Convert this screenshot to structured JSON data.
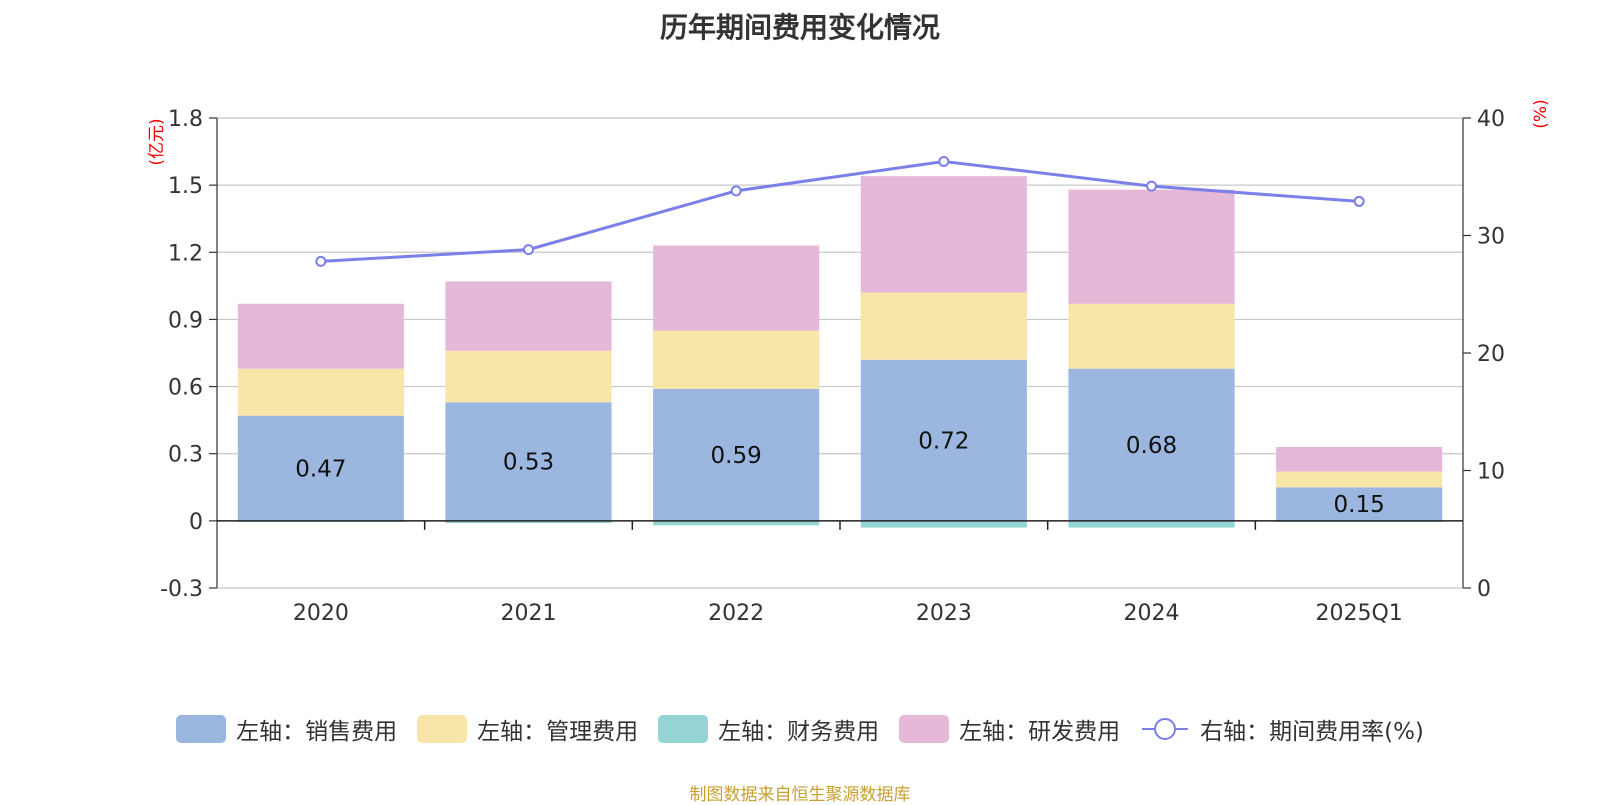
{
  "title": "历年期间费用变化情况",
  "source": "制图数据来自恒生聚源数据库",
  "chart_data": {
    "type": "bar",
    "stacked": true,
    "categories": [
      "2020",
      "2021",
      "2022",
      "2023",
      "2024",
      "2025Q1"
    ],
    "left_axis": {
      "unit": "(亿元)",
      "min": -0.3,
      "max": 1.8,
      "ticks": [
        -0.3,
        0,
        0.3,
        0.6,
        0.9,
        1.2,
        1.5,
        1.8
      ]
    },
    "right_axis": {
      "unit": "(%)",
      "min": 0,
      "max": 40,
      "ticks": [
        0,
        10,
        20,
        30,
        40
      ]
    },
    "series": [
      {
        "name": "左轴：销售费用",
        "axis": "left",
        "color": "#9bb7e0",
        "values": [
          0.47,
          0.53,
          0.59,
          0.72,
          0.68,
          0.15
        ],
        "labels_shown": true
      },
      {
        "name": "左轴：管理费用",
        "axis": "left",
        "color": "#f8e6a8",
        "values": [
          0.21,
          0.23,
          0.26,
          0.3,
          0.29,
          0.07
        ]
      },
      {
        "name": "左轴：财务费用",
        "axis": "left",
        "color": "#94d4d4",
        "values": [
          -0.005,
          -0.01,
          -0.02,
          -0.03,
          -0.03,
          -0.005
        ]
      },
      {
        "name": "左轴：研发费用",
        "axis": "left",
        "color": "#e6b8d8",
        "values": [
          0.29,
          0.31,
          0.38,
          0.52,
          0.51,
          0.11
        ]
      }
    ],
    "line": {
      "name": "右轴：期间费用率(%)",
      "axis": "right",
      "color": "#7b7fe8",
      "values": [
        27.8,
        28.8,
        33.8,
        36.3,
        34.2,
        32.9
      ]
    }
  }
}
